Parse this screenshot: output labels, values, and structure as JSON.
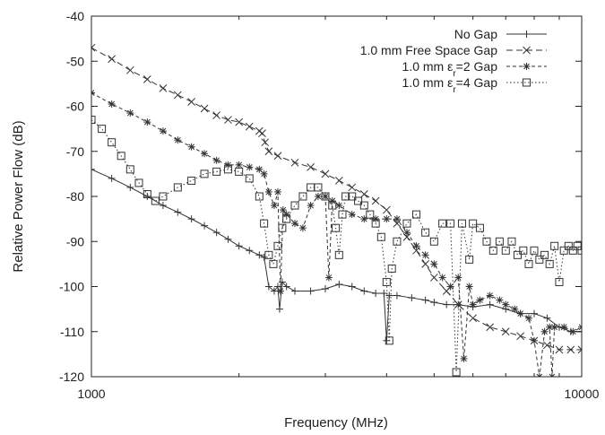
{
  "chart_data": {
    "type": "line",
    "xlabel": "Frequency (MHz)",
    "ylabel": "Relative Power Flow (dB)",
    "xscale": "log",
    "xlim": [
      1000,
      10000
    ],
    "ylim": [
      -120,
      -40
    ],
    "x_ticks": [
      1000,
      10000
    ],
    "x_tick_labels": [
      "1000",
      "10000"
    ],
    "y_ticks": [
      -120,
      -110,
      -100,
      -90,
      -80,
      -70,
      -60,
      -50,
      -40
    ],
    "y_tick_labels": [
      "-120",
      "-110",
      "-100",
      "-90",
      "-80",
      "-70",
      "-60",
      "-50",
      "-40"
    ],
    "grid": false,
    "legend_position": "top-right",
    "series": [
      {
        "name": "No Gap",
        "legend_label": {
          "before": "No Gap",
          "sub": "",
          "after": ""
        },
        "marker": "plus",
        "dash": "solid",
        "points": [
          [
            1000,
            -74
          ],
          [
            1100,
            -76
          ],
          [
            1200,
            -78
          ],
          [
            1300,
            -80
          ],
          [
            1400,
            -82
          ],
          [
            1500,
            -83.5
          ],
          [
            1600,
            -85
          ],
          [
            1700,
            -86.5
          ],
          [
            1800,
            -88
          ],
          [
            1900,
            -89.5
          ],
          [
            2000,
            -91
          ],
          [
            2100,
            -92
          ],
          [
            2200,
            -93
          ],
          [
            2250,
            -93.5
          ],
          [
            2300,
            -100
          ],
          [
            2360,
            -101
          ],
          [
            2400,
            -100
          ],
          [
            2420,
            -105
          ],
          [
            2450,
            -99
          ],
          [
            2500,
            -100
          ],
          [
            2600,
            -101
          ],
          [
            2800,
            -101
          ],
          [
            3000,
            -100.5
          ],
          [
            3200,
            -99.5
          ],
          [
            3400,
            -100
          ],
          [
            3600,
            -101
          ],
          [
            3800,
            -101.5
          ],
          [
            3950,
            -101.5
          ],
          [
            4000,
            -112
          ],
          [
            4050,
            -102
          ],
          [
            4200,
            -102
          ],
          [
            4500,
            -102.5
          ],
          [
            4800,
            -103
          ],
          [
            5000,
            -103.5
          ],
          [
            5300,
            -104
          ],
          [
            5600,
            -104
          ],
          [
            6000,
            -104.5
          ],
          [
            6500,
            -104
          ],
          [
            7000,
            -105
          ],
          [
            7500,
            -106
          ],
          [
            8000,
            -106
          ],
          [
            8500,
            -107
          ],
          [
            9000,
            -109
          ],
          [
            9500,
            -110
          ],
          [
            10000,
            -110
          ]
        ]
      },
      {
        "name": "1.0 mm Free Space Gap",
        "legend_label": {
          "before": "1.0 mm Free Space Gap",
          "sub": "",
          "after": ""
        },
        "marker": "x",
        "dash": "7,4",
        "points": [
          [
            1000,
            -47
          ],
          [
            1100,
            -49.5
          ],
          [
            1200,
            -52
          ],
          [
            1300,
            -54
          ],
          [
            1400,
            -56
          ],
          [
            1500,
            -57.5
          ],
          [
            1600,
            -59
          ],
          [
            1700,
            -60.5
          ],
          [
            1800,
            -62
          ],
          [
            1900,
            -63
          ],
          [
            2000,
            -63.5
          ],
          [
            2100,
            -64.5
          ],
          [
            2200,
            -65.5
          ],
          [
            2230,
            -66
          ],
          [
            2260,
            -68
          ],
          [
            2300,
            -70
          ],
          [
            2400,
            -71
          ],
          [
            2600,
            -72.5
          ],
          [
            2800,
            -73.5
          ],
          [
            3000,
            -75
          ],
          [
            3200,
            -76.5
          ],
          [
            3400,
            -78
          ],
          [
            3600,
            -79.5
          ],
          [
            3800,
            -81
          ],
          [
            4000,
            -83
          ],
          [
            4200,
            -86
          ],
          [
            4400,
            -89
          ],
          [
            4600,
            -92
          ],
          [
            4800,
            -95
          ],
          [
            5000,
            -98
          ],
          [
            5300,
            -101
          ],
          [
            5600,
            -104
          ],
          [
            6000,
            -107
          ],
          [
            6500,
            -109
          ],
          [
            7000,
            -110
          ],
          [
            7500,
            -111
          ],
          [
            8000,
            -112
          ],
          [
            8500,
            -113
          ],
          [
            9000,
            -114
          ],
          [
            9500,
            -114
          ],
          [
            10000,
            -114
          ]
        ]
      },
      {
        "name": "1.0 mm εr=2 Gap",
        "legend_label": {
          "before": "1.0 mm ε",
          "sub": "r",
          "after": "=2 Gap"
        },
        "marker": "star",
        "dash": "4,3",
        "points": [
          [
            1000,
            -57
          ],
          [
            1100,
            -59.5
          ],
          [
            1200,
            -61.5
          ],
          [
            1300,
            -63.5
          ],
          [
            1400,
            -65.5
          ],
          [
            1500,
            -67.5
          ],
          [
            1600,
            -69
          ],
          [
            1700,
            -70.5
          ],
          [
            1800,
            -72
          ],
          [
            1900,
            -73
          ],
          [
            2000,
            -73
          ],
          [
            2100,
            -73.5
          ],
          [
            2200,
            -74
          ],
          [
            2250,
            -75
          ],
          [
            2300,
            -79
          ],
          [
            2360,
            -82
          ],
          [
            2400,
            -79
          ],
          [
            2430,
            -101
          ],
          [
            2460,
            -83
          ],
          [
            2500,
            -84
          ],
          [
            2600,
            -86
          ],
          [
            2700,
            -87
          ],
          [
            2800,
            -82
          ],
          [
            2900,
            -80
          ],
          [
            3000,
            -80
          ],
          [
            3050,
            -98
          ],
          [
            3100,
            -81
          ],
          [
            3200,
            -82
          ],
          [
            3400,
            -84
          ],
          [
            3600,
            -85
          ],
          [
            3800,
            -85
          ],
          [
            4000,
            -85
          ],
          [
            4200,
            -85
          ],
          [
            4400,
            -88
          ],
          [
            4600,
            -91
          ],
          [
            4800,
            -93
          ],
          [
            5000,
            -95
          ],
          [
            5200,
            -98
          ],
          [
            5400,
            -100
          ],
          [
            5600,
            -98
          ],
          [
            5750,
            -116
          ],
          [
            5900,
            -100
          ],
          [
            6000,
            -104
          ],
          [
            6200,
            -103
          ],
          [
            6500,
            -102
          ],
          [
            6800,
            -103
          ],
          [
            7000,
            -104
          ],
          [
            7300,
            -105
          ],
          [
            7500,
            -106
          ],
          [
            7800,
            -107
          ],
          [
            8000,
            -112
          ],
          [
            8200,
            -120
          ],
          [
            8400,
            -110
          ],
          [
            8600,
            -109
          ],
          [
            8700,
            -120
          ],
          [
            8800,
            -109
          ],
          [
            9200,
            -109
          ],
          [
            9600,
            -110
          ],
          [
            10000,
            -109
          ]
        ]
      },
      {
        "name": "1.0 mm εr=4 Gap",
        "legend_label": {
          "before": "1.0 mm ε",
          "sub": "r",
          "after": "=4 Gap"
        },
        "marker": "square",
        "dash": "1.5,2.5",
        "points": [
          [
            1000,
            -63
          ],
          [
            1050,
            -65
          ],
          [
            1100,
            -68
          ],
          [
            1150,
            -71
          ],
          [
            1200,
            -74
          ],
          [
            1250,
            -77
          ],
          [
            1300,
            -79.5
          ],
          [
            1350,
            -81
          ],
          [
            1400,
            -80
          ],
          [
            1500,
            -78
          ],
          [
            1600,
            -76.5
          ],
          [
            1700,
            -75
          ],
          [
            1800,
            -74.5
          ],
          [
            1900,
            -74
          ],
          [
            2000,
            -74.5
          ],
          [
            2100,
            -76
          ],
          [
            2200,
            -80
          ],
          [
            2250,
            -86
          ],
          [
            2300,
            -93
          ],
          [
            2350,
            -95
          ],
          [
            2400,
            -91
          ],
          [
            2450,
            -87
          ],
          [
            2500,
            -85
          ],
          [
            2600,
            -82
          ],
          [
            2700,
            -80
          ],
          [
            2800,
            -78
          ],
          [
            2900,
            -78
          ],
          [
            3000,
            -80
          ],
          [
            3100,
            -82
          ],
          [
            3150,
            -87
          ],
          [
            3200,
            -93
          ],
          [
            3250,
            -84
          ],
          [
            3300,
            -80
          ],
          [
            3400,
            -80
          ],
          [
            3500,
            -81
          ],
          [
            3600,
            -82
          ],
          [
            3700,
            -84
          ],
          [
            3800,
            -86
          ],
          [
            3900,
            -89
          ],
          [
            4000,
            -99
          ],
          [
            4050,
            -112
          ],
          [
            4100,
            -96
          ],
          [
            4200,
            -90
          ],
          [
            4400,
            -86
          ],
          [
            4600,
            -84
          ],
          [
            4800,
            -88
          ],
          [
            5000,
            -90
          ],
          [
            5200,
            -86
          ],
          [
            5400,
            -86
          ],
          [
            5550,
            -119
          ],
          [
            5700,
            -86
          ],
          [
            5900,
            -94
          ],
          [
            6000,
            -86
          ],
          [
            6200,
            -87
          ],
          [
            6400,
            -90
          ],
          [
            6600,
            -92
          ],
          [
            6800,
            -90
          ],
          [
            7000,
            -92
          ],
          [
            7200,
            -90
          ],
          [
            7400,
            -93
          ],
          [
            7600,
            -92
          ],
          [
            7800,
            -95
          ],
          [
            8000,
            -92
          ],
          [
            8200,
            -94
          ],
          [
            8400,
            -93
          ],
          [
            8600,
            -95
          ],
          [
            8800,
            -91
          ],
          [
            9000,
            -99
          ],
          [
            9200,
            -92
          ],
          [
            9400,
            -91
          ],
          [
            9600,
            -92
          ],
          [
            9800,
            -91
          ],
          [
            10000,
            -92
          ]
        ]
      }
    ]
  }
}
